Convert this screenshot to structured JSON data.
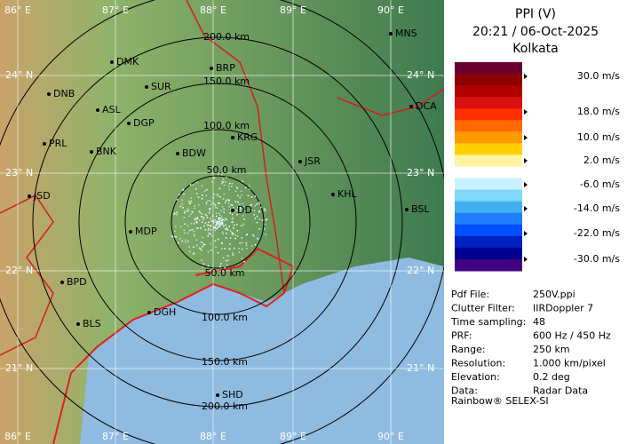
{
  "header": {
    "title": "PPI (V)",
    "datetime": "20:21 / 06-Oct-2025",
    "station": "Kolkata"
  },
  "map": {
    "longitudes": [
      "86° E",
      "87° E",
      "88° E",
      "89° E",
      "90° E"
    ],
    "latitudes": [
      "24° N",
      "23° N",
      "22° N",
      "21° N"
    ],
    "ranges_north": [
      "50.0 km",
      "100.0 km",
      "150.0 km",
      "200.0 km"
    ],
    "ranges_south": [
      "50.0 km",
      "100.0 km",
      "150.0 km",
      "200.0 km"
    ],
    "places": [
      "MNS",
      "DMK",
      "BRP",
      "DNB",
      "SUR",
      "ASL",
      "DGP",
      "DCA",
      "KRG",
      "PRL",
      "BNK",
      "BDW",
      "JSR",
      "JSD",
      "KHL",
      "DD",
      "BSL",
      "MDP",
      "BPD",
      "BLS",
      "DGH",
      "SHD"
    ]
  },
  "legend": {
    "labels": [
      "30.0 m/s",
      "18.0 m/s",
      "10.0 m/s",
      "2.0 m/s",
      "-6.0 m/s",
      "-14.0 m/s",
      "-22.0 m/s",
      "-30.0 m/s"
    ]
  },
  "info": {
    "rows": [
      [
        "Pdf File:",
        "250V.ppi"
      ],
      [
        "Clutter Filter:",
        "IIRDoppler 7"
      ],
      [
        "Time sampling:",
        "48"
      ],
      [
        "PRF:",
        "600 Hz / 450 Hz"
      ],
      [
        "Range:",
        "250 km"
      ],
      [
        "Resolution:",
        "1.000 km/pixel"
      ],
      [
        "Elevation:",
        "0.2 deg"
      ],
      [
        "Data:",
        "Radar Data"
      ]
    ],
    "footer": "Rainbow® SELEX-SI"
  }
}
